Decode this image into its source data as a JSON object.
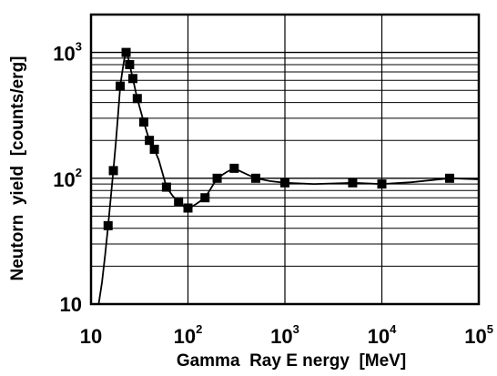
{
  "chart_data": {
    "type": "line",
    "xscale": "log",
    "yscale": "log",
    "xlim": [
      10,
      100000
    ],
    "ylim": [
      10,
      2000
    ],
    "xlabel": "Gamma  Ray E nergy  [MeV]",
    "ylabel": "Neutorn  yield  [counts/erg]",
    "grid": true,
    "x_ticks": [
      {
        "base": "10",
        "exp": ""
      },
      {
        "base": "10",
        "exp": "2"
      },
      {
        "base": "10",
        "exp": "3"
      },
      {
        "base": "10",
        "exp": "4"
      },
      {
        "base": "10",
        "exp": "5"
      }
    ],
    "y_ticks": [
      {
        "base": "10",
        "exp": ""
      },
      {
        "base": "10",
        "exp": "2"
      },
      {
        "base": "10",
        "exp": "3"
      }
    ],
    "series": [
      {
        "x": [
          15,
          17,
          20,
          23,
          25,
          27,
          30,
          35,
          40,
          45,
          60,
          80,
          100,
          150,
          200,
          300,
          500,
          1000,
          5000,
          10000,
          50000
        ],
        "y": [
          42,
          115,
          540,
          1000,
          800,
          620,
          430,
          280,
          200,
          170,
          85,
          65,
          58,
          70,
          100,
          120,
          100,
          92,
          92,
          90,
          100
        ]
      }
    ],
    "curve": {
      "x": [
        12,
        13,
        14,
        15,
        16,
        17,
        18,
        19,
        20,
        21,
        22,
        23,
        24,
        25,
        27,
        30,
        35,
        40,
        45,
        50,
        60,
        70,
        80,
        90,
        100,
        120,
        150,
        200,
        250,
        300,
        400,
        500,
        700,
        1000,
        2000,
        5000,
        10000,
        20000,
        50000,
        100000
      ],
      "y": [
        10,
        15,
        25,
        42,
        70,
        115,
        190,
        320,
        540,
        700,
        880,
        1000,
        930,
        800,
        620,
        430,
        280,
        200,
        170,
        140,
        85,
        72,
        65,
        60,
        57,
        62,
        70,
        100,
        112,
        120,
        108,
        100,
        95,
        92,
        90,
        92,
        90,
        93,
        100,
        98
      ]
    }
  }
}
